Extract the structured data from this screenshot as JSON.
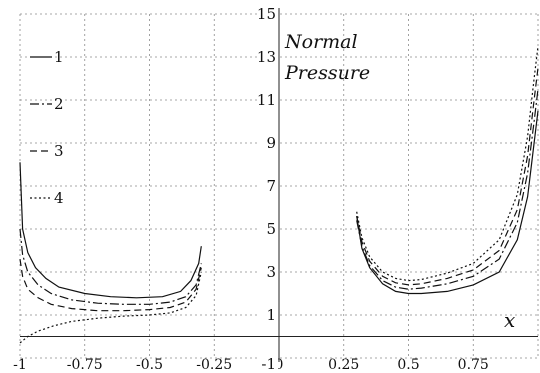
{
  "chart_data": {
    "type": "line",
    "title_lines": [
      "Normal",
      "Pressure"
    ],
    "xlabel": "x",
    "ylabel": "",
    "xlim": [
      -1,
      1
    ],
    "ylim": [
      -1,
      15
    ],
    "x_ticks": [
      -1,
      -0.75,
      -0.5,
      -0.25,
      0,
      0.25,
      0.5,
      0.75
    ],
    "x_tick_labels": [
      "-1",
      "-0.75",
      "-0.5",
      "-0.25",
      "0",
      "0.25",
      "0.5",
      "0.75"
    ],
    "y_ticks": [
      -1,
      1,
      3,
      5,
      7,
      9,
      11,
      13,
      15
    ],
    "y_tick_labels": [
      "-1",
      "1",
      "3",
      "5",
      "7",
      "9",
      "11",
      "13",
      "15"
    ],
    "grid": true,
    "legend_position": "upper-left",
    "series": [
      {
        "name": "1",
        "style": "solid",
        "segments": [
          [
            [
              -1,
              8.1
            ],
            [
              -0.99,
              5.0
            ],
            [
              -0.97,
              3.9
            ],
            [
              -0.94,
              3.2
            ],
            [
              -0.9,
              2.7
            ],
            [
              -0.85,
              2.3
            ],
            [
              -0.75,
              2.0
            ],
            [
              -0.65,
              1.85
            ],
            [
              -0.55,
              1.8
            ],
            [
              -0.45,
              1.85
            ],
            [
              -0.38,
              2.1
            ],
            [
              -0.34,
              2.6
            ],
            [
              -0.31,
              3.4
            ],
            [
              -0.3,
              4.2
            ]
          ],
          [
            [
              0.3,
              5.6
            ],
            [
              0.32,
              4.1
            ],
            [
              0.35,
              3.2
            ],
            [
              0.4,
              2.45
            ],
            [
              0.45,
              2.1
            ],
            [
              0.5,
              2.0
            ],
            [
              0.55,
              2.0
            ],
            [
              0.65,
              2.1
            ],
            [
              0.75,
              2.4
            ],
            [
              0.85,
              3.0
            ],
            [
              0.92,
              4.5
            ],
            [
              0.96,
              6.5
            ],
            [
              0.985,
              9.0
            ],
            [
              1.0,
              10.5
            ]
          ]
        ]
      },
      {
        "name": "2",
        "style": "dashdot",
        "segments": [
          [
            [
              -1,
              5.0
            ],
            [
              -0.99,
              3.8
            ],
            [
              -0.97,
              3.0
            ],
            [
              -0.93,
              2.4
            ],
            [
              -0.88,
              2.0
            ],
            [
              -0.8,
              1.7
            ],
            [
              -0.7,
              1.55
            ],
            [
              -0.6,
              1.5
            ],
            [
              -0.5,
              1.5
            ],
            [
              -0.42,
              1.6
            ],
            [
              -0.36,
              1.85
            ],
            [
              -0.32,
              2.4
            ],
            [
              -0.3,
              3.4
            ]
          ],
          [
            [
              0.3,
              5.4
            ],
            [
              0.32,
              4.2
            ],
            [
              0.35,
              3.3
            ],
            [
              0.4,
              2.6
            ],
            [
              0.45,
              2.3
            ],
            [
              0.5,
              2.2
            ],
            [
              0.55,
              2.25
            ],
            [
              0.65,
              2.45
            ],
            [
              0.75,
              2.8
            ],
            [
              0.85,
              3.6
            ],
            [
              0.92,
              5.3
            ],
            [
              0.96,
              7.6
            ],
            [
              0.985,
              10.0
            ],
            [
              1.0,
              11.5
            ]
          ]
        ]
      },
      {
        "name": "3",
        "style": "dashed",
        "segments": [
          [
            [
              -1,
              3.6
            ],
            [
              -0.99,
              2.8
            ],
            [
              -0.97,
              2.2
            ],
            [
              -0.93,
              1.8
            ],
            [
              -0.88,
              1.5
            ],
            [
              -0.8,
              1.3
            ],
            [
              -0.7,
              1.2
            ],
            [
              -0.6,
              1.2
            ],
            [
              -0.5,
              1.25
            ],
            [
              -0.42,
              1.35
            ],
            [
              -0.36,
              1.6
            ],
            [
              -0.32,
              2.2
            ],
            [
              -0.3,
              3.2
            ]
          ],
          [
            [
              0.3,
              5.6
            ],
            [
              0.32,
              4.4
            ],
            [
              0.35,
              3.5
            ],
            [
              0.4,
              2.8
            ],
            [
              0.45,
              2.5
            ],
            [
              0.5,
              2.4
            ],
            [
              0.55,
              2.45
            ],
            [
              0.65,
              2.7
            ],
            [
              0.75,
              3.1
            ],
            [
              0.85,
              4.0
            ],
            [
              0.92,
              5.9
            ],
            [
              0.96,
              8.4
            ],
            [
              0.985,
              11.0
            ],
            [
              1.0,
              12.5
            ]
          ]
        ]
      },
      {
        "name": "4",
        "style": "dotted",
        "segments": [
          [
            [
              -1,
              -0.3
            ],
            [
              -0.97,
              0.0
            ],
            [
              -0.93,
              0.25
            ],
            [
              -0.87,
              0.5
            ],
            [
              -0.8,
              0.7
            ],
            [
              -0.7,
              0.85
            ],
            [
              -0.6,
              0.95
            ],
            [
              -0.5,
              1.0
            ],
            [
              -0.42,
              1.1
            ],
            [
              -0.36,
              1.35
            ],
            [
              -0.32,
              1.9
            ],
            [
              -0.3,
              3.0
            ]
          ],
          [
            [
              0.3,
              5.8
            ],
            [
              0.32,
              4.6
            ],
            [
              0.35,
              3.7
            ],
            [
              0.4,
              3.0
            ],
            [
              0.45,
              2.7
            ],
            [
              0.5,
              2.6
            ],
            [
              0.55,
              2.65
            ],
            [
              0.65,
              2.95
            ],
            [
              0.75,
              3.4
            ],
            [
              0.85,
              4.5
            ],
            [
              0.92,
              6.6
            ],
            [
              0.96,
              9.3
            ],
            [
              0.985,
              12.0
            ],
            [
              1.0,
              13.5
            ]
          ]
        ]
      }
    ]
  }
}
